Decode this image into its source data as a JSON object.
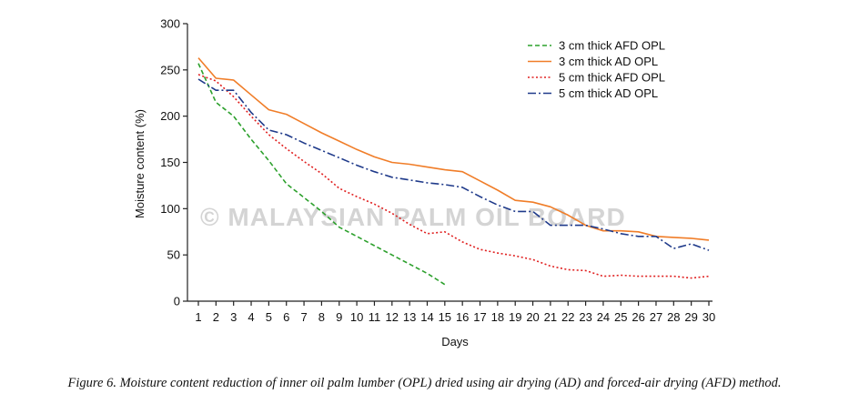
{
  "caption": "Figure 6. Moisture content reduction of inner oil palm lumber (OPL) dried using air drying (AD) and forced-air drying (AFD) method.",
  "watermark": "© MALAYSIAN PALM OIL BOARD",
  "chart_data": {
    "type": "line",
    "xlabel": "Days",
    "ylabel": "Moisture content (%)",
    "xlim": [
      1,
      30
    ],
    "ylim": [
      0,
      300
    ],
    "x_ticks": [
      "1",
      "2",
      "3",
      "4",
      "5",
      "6",
      "7",
      "8",
      "9",
      "10",
      "11",
      "12",
      "13",
      "14",
      "15",
      "16",
      "17",
      "18",
      "19",
      "20",
      "21",
      "22",
      "23",
      "24",
      "25",
      "26",
      "27",
      "28",
      "29",
      "30"
    ],
    "y_ticks": [
      "0",
      "50",
      "100",
      "150",
      "200",
      "250",
      "300"
    ],
    "grid": false,
    "legend_position": "top-right",
    "series": [
      {
        "name": "3 cm thick AFD OPL",
        "color": "#2ca02c",
        "style": "dashed",
        "x": [
          1,
          2,
          3,
          4,
          5,
          6,
          7,
          8,
          9,
          10,
          11,
          12,
          13,
          14,
          15
        ],
        "y": [
          257,
          215,
          200,
          175,
          152,
          127,
          112,
          97,
          80,
          70,
          60,
          50,
          40,
          30,
          18
        ]
      },
      {
        "name": "3 cm thick AD OPL",
        "color": "#f07d28",
        "style": "solid",
        "x": [
          1,
          2,
          3,
          4,
          5,
          6,
          7,
          8,
          9,
          10,
          11,
          12,
          13,
          14,
          15,
          16,
          17,
          18,
          19,
          20,
          21,
          22,
          23,
          24,
          25,
          26,
          27,
          28,
          29,
          30
        ],
        "y": [
          263,
          241,
          239,
          223,
          207,
          202,
          192,
          182,
          173,
          164,
          156,
          150,
          148,
          145,
          142,
          140,
          130,
          120,
          109,
          107,
          102,
          93,
          82,
          76,
          76,
          75,
          70,
          69,
          68,
          66
        ]
      },
      {
        "name": "5 cm thick AFD OPL",
        "color": "#e02020",
        "style": "dotted",
        "x": [
          1,
          2,
          3,
          4,
          5,
          6,
          7,
          8,
          9,
          10,
          11,
          12,
          13,
          14,
          15,
          16,
          17,
          18,
          19,
          20,
          21,
          22,
          23,
          24,
          25,
          26,
          27,
          28,
          29,
          30
        ],
        "y": [
          245,
          238,
          221,
          200,
          180,
          165,
          151,
          138,
          122,
          113,
          105,
          95,
          83,
          73,
          75,
          64,
          56,
          52,
          49,
          45,
          38,
          34,
          33,
          27,
          28,
          27,
          27,
          27,
          25,
          27
        ]
      },
      {
        "name": "5 cm thick AD OPL",
        "color": "#1f3a8a",
        "style": "dashdot",
        "x": [
          1,
          2,
          3,
          4,
          5,
          6,
          7,
          8,
          9,
          10,
          11,
          12,
          13,
          14,
          15,
          16,
          17,
          18,
          19,
          20,
          21,
          22,
          23,
          24,
          25,
          26,
          27,
          28,
          29,
          30
        ],
        "y": [
          240,
          228,
          228,
          204,
          185,
          180,
          171,
          163,
          155,
          147,
          140,
          134,
          131,
          128,
          126,
          123,
          113,
          104,
          97,
          97,
          82,
          82,
          82,
          78,
          73,
          70,
          70,
          57,
          62,
          55
        ]
      }
    ]
  }
}
